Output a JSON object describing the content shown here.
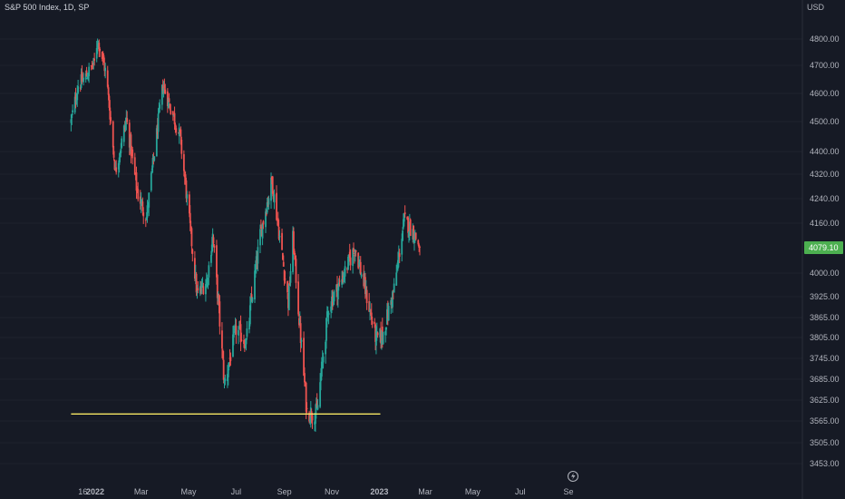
{
  "header": {
    "title": "S&P 500 Index, 1D, SP",
    "currency": "USD"
  },
  "colors": {
    "background": "#161a25",
    "up": "#26a69a",
    "down": "#ef5350",
    "support_line": "#f5e663",
    "price_badge": "#4caf50",
    "axis_text": "#b2b5be"
  },
  "icons": {
    "replay": "lightning-icon"
  },
  "chart_data": {
    "type": "candlestick",
    "title": "S&P 500 Index, 1D, SP",
    "y_unit": "USD",
    "y_axis_position": "right",
    "y_ticks": [
      {
        "label": "4800.00",
        "value": 4800
      },
      {
        "label": "4700.00",
        "value": 4700
      },
      {
        "label": "4600.00",
        "value": 4600
      },
      {
        "label": "4500.00",
        "value": 4500
      },
      {
        "label": "4400.00",
        "value": 4400
      },
      {
        "label": "4320.00",
        "value": 4320
      },
      {
        "label": "4240.00",
        "value": 4240
      },
      {
        "label": "4160.00",
        "value": 4160
      },
      {
        "label": "4000.00",
        "value": 4000
      },
      {
        "label": "3925.00",
        "value": 3925
      },
      {
        "label": "3865.00",
        "value": 3865
      },
      {
        "label": "3805.00",
        "value": 3805
      },
      {
        "label": "3745.00",
        "value": 3745
      },
      {
        "label": "3685.00",
        "value": 3685
      },
      {
        "label": "3625.00",
        "value": 3625
      },
      {
        "label": "3565.00",
        "value": 3565
      },
      {
        "label": "3505.00",
        "value": 3505
      },
      {
        "label": "3453.00",
        "value": 3453
      }
    ],
    "x_ticks": [
      {
        "label": "16",
        "date": "2021-12-16",
        "bold": false
      },
      {
        "label": "2022",
        "date": "2022-01-01",
        "bold": true
      },
      {
        "label": "Mar",
        "date": "2022-03-01",
        "bold": false
      },
      {
        "label": "May",
        "date": "2022-05-01",
        "bold": false
      },
      {
        "label": "Jul",
        "date": "2022-07-01",
        "bold": false
      },
      {
        "label": "Sep",
        "date": "2022-09-01",
        "bold": false
      },
      {
        "label": "Nov",
        "date": "2022-11-01",
        "bold": false
      },
      {
        "label": "2023",
        "date": "2023-01-01",
        "bold": true
      },
      {
        "label": "Mar",
        "date": "2023-03-01",
        "bold": false
      },
      {
        "label": "May",
        "date": "2023-05-01",
        "bold": false
      },
      {
        "label": "Jul",
        "date": "2023-07-01",
        "bold": false
      },
      {
        "label": "Se",
        "date": "2023-09-01",
        "bold": false
      }
    ],
    "last_price": {
      "label": "4079.10",
      "value": 4079.1
    },
    "support_line": {
      "value": 3585,
      "from_date": "2021-12-01",
      "to_date": "2022-12-31"
    },
    "price_path": [
      {
        "date": "2021-12-01",
        "close": 4500
      },
      {
        "date": "2021-12-10",
        "close": 4630
      },
      {
        "date": "2021-12-20",
        "close": 4660
      },
      {
        "date": "2021-12-31",
        "close": 4710
      },
      {
        "date": "2022-01-04",
        "close": 4800
      },
      {
        "date": "2022-01-15",
        "close": 4670
      },
      {
        "date": "2022-01-27",
        "close": 4330
      },
      {
        "date": "2022-02-10",
        "close": 4510
      },
      {
        "date": "2022-02-24",
        "close": 4260
      },
      {
        "date": "2022-03-08",
        "close": 4180
      },
      {
        "date": "2022-03-29",
        "close": 4630
      },
      {
        "date": "2022-04-20",
        "close": 4450
      },
      {
        "date": "2022-05-12",
        "close": 3930
      },
      {
        "date": "2022-05-25",
        "close": 3980
      },
      {
        "date": "2022-06-01",
        "close": 4120
      },
      {
        "date": "2022-06-16",
        "close": 3670
      },
      {
        "date": "2022-07-01",
        "close": 3830
      },
      {
        "date": "2022-07-14",
        "close": 3790
      },
      {
        "date": "2022-08-01",
        "close": 4120
      },
      {
        "date": "2022-08-16",
        "close": 4300
      },
      {
        "date": "2022-09-06",
        "close": 3910
      },
      {
        "date": "2022-09-12",
        "close": 4110
      },
      {
        "date": "2022-09-20",
        "close": 3860
      },
      {
        "date": "2022-09-30",
        "close": 3590
      },
      {
        "date": "2022-10-13",
        "close": 3590
      },
      {
        "date": "2022-10-28",
        "close": 3900
      },
      {
        "date": "2022-11-10",
        "close": 3960
      },
      {
        "date": "2022-12-01",
        "close": 4080
      },
      {
        "date": "2022-12-28",
        "close": 3800
      },
      {
        "date": "2023-01-05",
        "close": 3810
      },
      {
        "date": "2023-01-20",
        "close": 3950
      },
      {
        "date": "2023-02-02",
        "close": 4170
      },
      {
        "date": "2023-02-14",
        "close": 4130
      },
      {
        "date": "2023-02-22",
        "close": 4079
      }
    ]
  }
}
